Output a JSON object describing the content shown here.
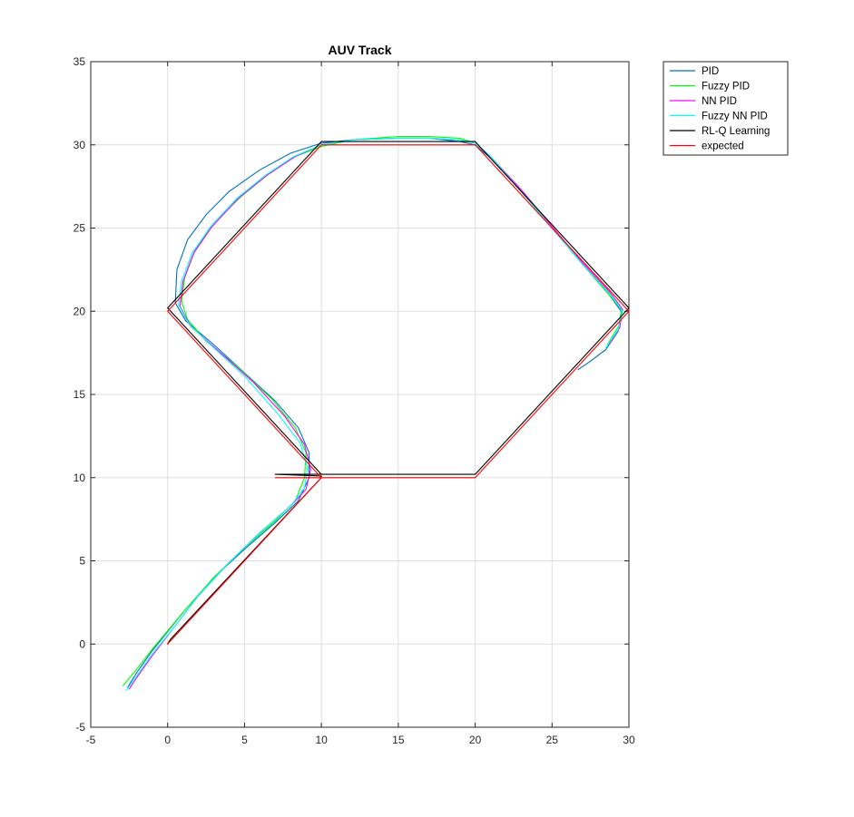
{
  "chart_data": {
    "type": "line",
    "title": "AUV Track",
    "xlabel": "",
    "ylabel": "",
    "xlim": [
      -5,
      30
    ],
    "ylim": [
      -5,
      35
    ],
    "xticks": [
      -5,
      0,
      5,
      10,
      15,
      20,
      25,
      30
    ],
    "yticks": [
      -5,
      0,
      5,
      10,
      15,
      20,
      25,
      30,
      35
    ],
    "grid": true,
    "legend_position": "outside-top-right",
    "series": [
      {
        "name": "PID",
        "color": "#0072BD",
        "points": [
          [
            -2.6,
            -2.6
          ],
          [
            -2,
            -1.7
          ],
          [
            -1,
            -0.4
          ],
          [
            1,
            1.9
          ],
          [
            3,
            4
          ],
          [
            5,
            5.7
          ],
          [
            7,
            7.3
          ],
          [
            8.5,
            8.6
          ],
          [
            9.2,
            10
          ],
          [
            9.2,
            11.5
          ],
          [
            8.5,
            13
          ],
          [
            7,
            14.6
          ],
          [
            5,
            16.3
          ],
          [
            3,
            18
          ],
          [
            1.2,
            19.4
          ],
          [
            0.5,
            20.5
          ],
          [
            0.6,
            22.5
          ],
          [
            1.3,
            24.3
          ],
          [
            2.5,
            25.8
          ],
          [
            4,
            27.2
          ],
          [
            6,
            28.5
          ],
          [
            8,
            29.5
          ],
          [
            10,
            30.1
          ],
          [
            12,
            30.3
          ],
          [
            15,
            30.4
          ],
          [
            17,
            30.4
          ],
          [
            19,
            30.2
          ],
          [
            20,
            30
          ],
          [
            21,
            29.2
          ],
          [
            23,
            27.2
          ],
          [
            25,
            25
          ],
          [
            27,
            22.8
          ],
          [
            28.7,
            21
          ],
          [
            29.5,
            20
          ],
          [
            29.3,
            18.8
          ],
          [
            28.5,
            17.7
          ],
          [
            27.5,
            17
          ],
          [
            26.7,
            16.5
          ]
        ]
      },
      {
        "name": "Fuzzy PID",
        "color": "#00FF00",
        "points": [
          [
            -2.9,
            -2.5
          ],
          [
            -2,
            -1.5
          ],
          [
            -1,
            -0.3
          ],
          [
            1,
            1.9
          ],
          [
            3,
            4
          ],
          [
            5,
            5.8
          ],
          [
            7,
            7.4
          ],
          [
            8.3,
            8.6
          ],
          [
            8.9,
            10
          ],
          [
            9,
            11.5
          ],
          [
            8.3,
            13
          ],
          [
            6.8,
            14.7
          ],
          [
            4.5,
            16.7
          ],
          [
            2.5,
            18.2
          ],
          [
            1.3,
            19.5
          ],
          [
            0.9,
            20.6
          ],
          [
            1.1,
            22
          ],
          [
            1.8,
            23.7
          ],
          [
            3,
            25.3
          ],
          [
            4.8,
            26.9
          ],
          [
            6.5,
            28.2
          ],
          [
            8.3,
            29.3
          ],
          [
            10,
            29.9
          ],
          [
            12,
            30.3
          ],
          [
            15,
            30.5
          ],
          [
            17,
            30.5
          ],
          [
            19,
            30.4
          ],
          [
            20,
            30.1
          ],
          [
            21,
            29.3
          ],
          [
            23,
            27.2
          ],
          [
            25,
            25
          ],
          [
            27,
            22.8
          ],
          [
            28.7,
            21
          ],
          [
            29.5,
            20.1
          ],
          [
            29.4,
            19.2
          ],
          [
            28.6,
            18
          ]
        ]
      },
      {
        "name": "NN PID",
        "color": "#FF00FF",
        "points": [
          [
            -2.5,
            -2.7
          ],
          [
            -2,
            -2
          ],
          [
            -1,
            -0.7
          ],
          [
            0.5,
            1.1
          ],
          [
            2,
            2.9
          ],
          [
            4,
            4.9
          ],
          [
            6,
            6.7
          ],
          [
            8,
            8.3
          ],
          [
            9,
            9.3
          ],
          [
            9.3,
            10.5
          ],
          [
            8.9,
            12
          ],
          [
            7.6,
            13.7
          ],
          [
            5.5,
            15.8
          ],
          [
            3.2,
            17.7
          ],
          [
            1.5,
            19.1
          ],
          [
            0.8,
            20.3
          ],
          [
            1,
            21.8
          ],
          [
            1.7,
            23.5
          ],
          [
            2.9,
            25.1
          ],
          [
            4.6,
            26.8
          ],
          [
            6.5,
            28.2
          ],
          [
            8.3,
            29.3
          ],
          [
            10,
            30
          ],
          [
            12,
            30.3
          ],
          [
            15,
            30.4
          ],
          [
            17,
            30.4
          ],
          [
            19,
            30.3
          ],
          [
            20,
            30.1
          ],
          [
            21,
            29.3
          ],
          [
            23,
            27.3
          ],
          [
            25,
            25.1
          ],
          [
            27,
            22.9
          ],
          [
            28.8,
            21.1
          ],
          [
            29.6,
            20.1
          ],
          [
            29.4,
            19
          ],
          [
            28.7,
            18
          ]
        ]
      },
      {
        "name": "Fuzzy NN PID",
        "color": "#00FFFF",
        "points": [
          [
            -2.7,
            -2.8
          ],
          [
            -2,
            -1.9
          ],
          [
            -1,
            -0.6
          ],
          [
            0.5,
            1.1
          ],
          [
            2,
            2.9
          ],
          [
            4,
            4.9
          ],
          [
            6,
            6.7
          ],
          [
            8,
            8.3
          ],
          [
            8.9,
            9.4
          ],
          [
            9.1,
            10.6
          ],
          [
            8.6,
            12.1
          ],
          [
            7.2,
            13.8
          ],
          [
            5.1,
            16
          ],
          [
            3,
            17.8
          ],
          [
            1.4,
            19.2
          ],
          [
            0.7,
            20.4
          ],
          [
            0.9,
            21.8
          ],
          [
            1.6,
            23.5
          ],
          [
            2.8,
            25.1
          ],
          [
            4.5,
            26.8
          ],
          [
            6.4,
            28.2
          ],
          [
            8.2,
            29.3
          ],
          [
            10,
            30
          ],
          [
            12,
            30.3
          ],
          [
            15,
            30.4
          ],
          [
            17,
            30.4
          ],
          [
            19,
            30.3
          ],
          [
            20,
            30.1
          ],
          [
            21,
            29.3
          ],
          [
            23,
            27.2
          ],
          [
            25,
            25
          ],
          [
            27,
            22.8
          ],
          [
            28.8,
            21
          ],
          [
            29.6,
            20
          ],
          [
            29.3,
            18.9
          ],
          [
            28.5,
            17.8
          ]
        ]
      },
      {
        "name": "RL-Q Learning",
        "color": "#000000",
        "points": [
          [
            0,
            0
          ],
          [
            0.2,
            0.3
          ],
          [
            10,
            10
          ],
          [
            10,
            10.1
          ],
          [
            7,
            10.2
          ],
          [
            20,
            10.2
          ],
          [
            30,
            20.2
          ],
          [
            20,
            30.2
          ],
          [
            10,
            30.2
          ],
          [
            0,
            20.2
          ],
          [
            10,
            10.2
          ]
        ]
      },
      {
        "name": "expected",
        "color": "#FF0000",
        "points": [
          [
            0,
            0
          ],
          [
            10,
            10
          ],
          [
            7,
            10
          ],
          [
            20,
            10
          ],
          [
            30,
            20
          ],
          [
            20,
            30
          ],
          [
            10,
            30
          ],
          [
            0,
            20
          ],
          [
            10,
            10
          ]
        ]
      }
    ]
  }
}
